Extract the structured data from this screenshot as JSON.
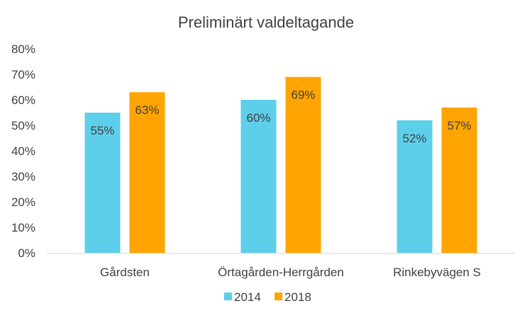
{
  "chart_data": {
    "type": "bar",
    "title": "Preliminärt valdeltagande",
    "xlabel": "",
    "ylabel": "",
    "categories": [
      "Gårdsten",
      "Örtagården-Herrgården",
      "Rinkebyvägen S"
    ],
    "series": [
      {
        "name": "2014",
        "color": "#5ecfea",
        "values": [
          55,
          60,
          52
        ],
        "labels": [
          "55%",
          "60%",
          "52%"
        ]
      },
      {
        "name": "2018",
        "color": "#ffa400",
        "values": [
          63,
          69,
          57
        ],
        "labels": [
          "63%",
          "69%",
          "57%"
        ]
      }
    ],
    "ylim": [
      0,
      80
    ],
    "yticks": [
      "0%",
      "10%",
      "20%",
      "30%",
      "40%",
      "50%",
      "60%",
      "70%",
      "80%"
    ],
    "grid": false,
    "legend_position": "bottom"
  }
}
